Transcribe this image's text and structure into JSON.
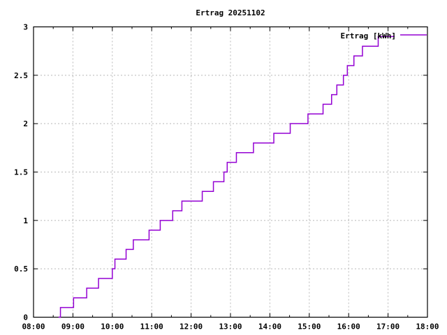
{
  "page": {
    "background": "#ffffff"
  },
  "chart_data": {
    "type": "line",
    "style": "step-after-staircase",
    "title": "Ertrag 20251102",
    "legend": {
      "label": "Ertrag [kWh]",
      "position": "top-right-inside"
    },
    "line_color": "#9400d3",
    "grid": true,
    "grid_color": "#b8b8b8",
    "border_color": "#000000",
    "x_axis": {
      "label": "",
      "range_hours": [
        8,
        18
      ],
      "tick_labels": [
        "08:00",
        "09:00",
        "10:00",
        "11:00",
        "12:00",
        "13:00",
        "14:00",
        "15:00",
        "16:00",
        "17:00",
        "18:00"
      ],
      "minor_tick_minutes": 30
    },
    "y_axis": {
      "label": "",
      "range": [
        0,
        3
      ],
      "ticks": [
        0,
        0.5,
        1,
        1.5,
        2,
        2.5,
        3
      ],
      "tick_labels": [
        "0",
        "0.5",
        "1",
        "1.5",
        "2",
        "2.5",
        "3"
      ]
    },
    "series": [
      {
        "name": "Ertrag [kWh]",
        "points": [
          [
            "08:38",
            0.0
          ],
          [
            "08:41",
            0.1
          ],
          [
            "09:01",
            0.2
          ],
          [
            "09:21",
            0.3
          ],
          [
            "09:39",
            0.4
          ],
          [
            "10:00",
            0.5
          ],
          [
            "10:04",
            0.6
          ],
          [
            "10:21",
            0.7
          ],
          [
            "10:32",
            0.8
          ],
          [
            "10:56",
            0.9
          ],
          [
            "11:13",
            1.0
          ],
          [
            "11:32",
            1.1
          ],
          [
            "11:46",
            1.2
          ],
          [
            "12:17",
            1.3
          ],
          [
            "12:34",
            1.4
          ],
          [
            "12:50",
            1.5
          ],
          [
            "12:55",
            1.6
          ],
          [
            "13:09",
            1.7
          ],
          [
            "13:35",
            1.8
          ],
          [
            "14:06",
            1.9
          ],
          [
            "14:31",
            2.0
          ],
          [
            "14:58",
            2.1
          ],
          [
            "15:21",
            2.2
          ],
          [
            "15:34",
            2.3
          ],
          [
            "15:42",
            2.4
          ],
          [
            "15:52",
            2.5
          ],
          [
            "15:58",
            2.6
          ],
          [
            "16:08",
            2.7
          ],
          [
            "16:21",
            2.8
          ],
          [
            "16:45",
            2.9
          ],
          [
            "17:10",
            2.9
          ]
        ]
      }
    ]
  }
}
